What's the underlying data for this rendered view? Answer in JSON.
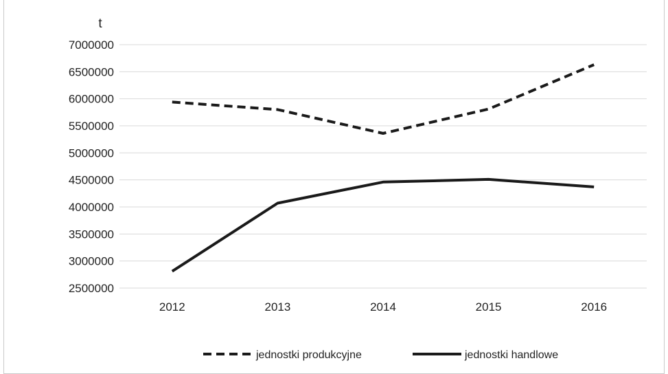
{
  "chart_data": {
    "type": "line",
    "title": "",
    "ylabel": "t",
    "xlabel": "",
    "categories": [
      "2012",
      "2013",
      "2014",
      "2015",
      "2016"
    ],
    "ylim": [
      2500000,
      7000000
    ],
    "yticks": [
      2500000,
      3000000,
      3500000,
      4000000,
      4500000,
      5000000,
      5500000,
      6000000,
      6500000,
      7000000
    ],
    "grid": true,
    "legend_position": "bottom",
    "series": [
      {
        "name": "jednostki produkcyjne",
        "style": "dashed",
        "color": "#1a1a1a",
        "values": [
          5940000,
          5800000,
          5360000,
          5810000,
          6630000
        ]
      },
      {
        "name": "jednostki handlowe",
        "style": "solid",
        "color": "#1a1a1a",
        "values": [
          2810000,
          4070000,
          4460000,
          4510000,
          4370000
        ]
      }
    ]
  }
}
